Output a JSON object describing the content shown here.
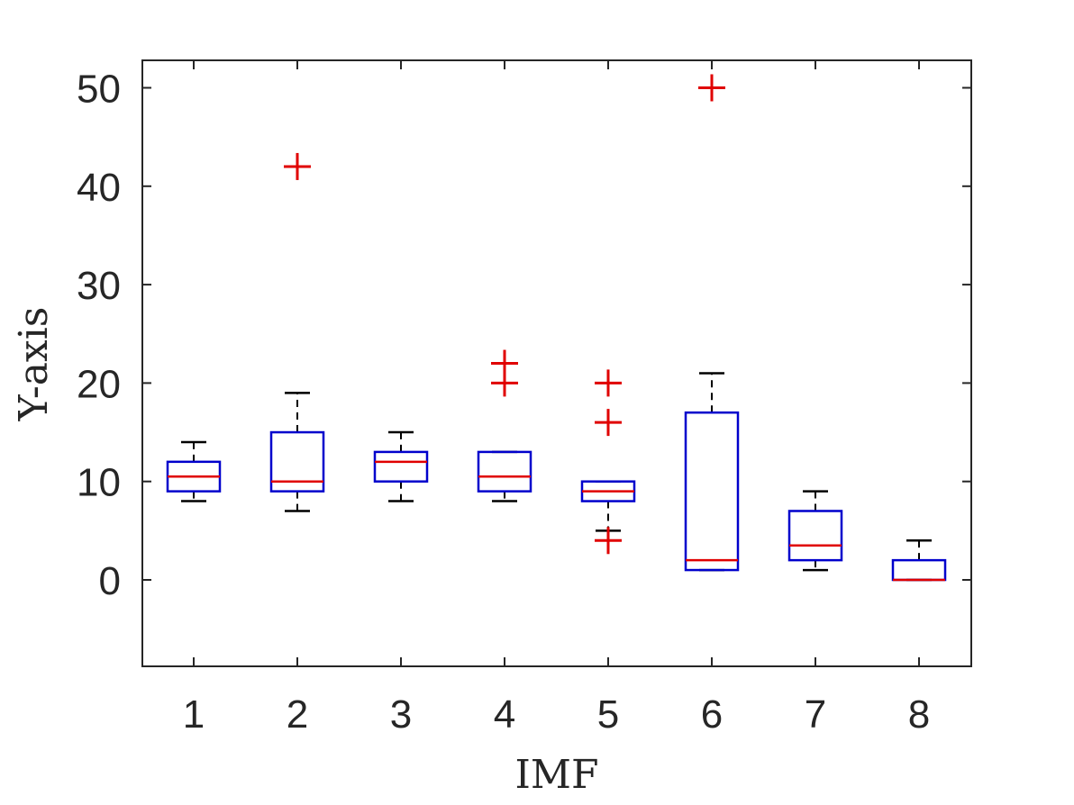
{
  "chart_data": {
    "type": "box",
    "title": "",
    "xlabel": "IMF",
    "ylabel": "Y-axis",
    "categories": [
      "1",
      "2",
      "3",
      "4",
      "5",
      "6",
      "7",
      "8"
    ],
    "ylim": [
      -9,
      53
    ],
    "yticks": [
      0,
      10,
      20,
      30,
      40,
      50
    ],
    "ytick_labels": [
      "0",
      "10",
      "20",
      "30",
      "40",
      "50"
    ],
    "grid": false,
    "legend": "none",
    "colors": {
      "box": "#0000cc",
      "median": "#e00000",
      "whisker": "#000000",
      "outlier": "#e00000",
      "axis": "#262626"
    },
    "boxes": [
      {
        "category": "1",
        "whisker_low": 8,
        "q1": 9,
        "median": 10.5,
        "q3": 12,
        "whisker_high": 14,
        "outliers": []
      },
      {
        "category": "2",
        "whisker_low": 7,
        "q1": 9,
        "median": 10,
        "q3": 15,
        "whisker_high": 19,
        "outliers": [
          42
        ]
      },
      {
        "category": "3",
        "whisker_low": 8,
        "q1": 10,
        "median": 12,
        "q3": 13,
        "whisker_high": 15,
        "outliers": []
      },
      {
        "category": "4",
        "whisker_low": 8,
        "q1": 9,
        "median": 10.5,
        "q3": 13,
        "whisker_high": 13,
        "outliers": [
          20,
          22
        ]
      },
      {
        "category": "5",
        "whisker_low": 5,
        "q1": 8,
        "median": 9,
        "q3": 10,
        "whisker_high": 10,
        "outliers": [
          4,
          16,
          20
        ]
      },
      {
        "category": "6",
        "whisker_low": 1,
        "q1": 1,
        "median": 2,
        "q3": 17,
        "whisker_high": 21,
        "outliers": [
          50
        ]
      },
      {
        "category": "7",
        "whisker_low": 1,
        "q1": 2,
        "median": 3.5,
        "q3": 7,
        "whisker_high": 9,
        "outliers": []
      },
      {
        "category": "8",
        "whisker_low": 0,
        "q1": 0,
        "median": 0,
        "q3": 2,
        "whisker_high": 4,
        "outliers": []
      }
    ]
  }
}
